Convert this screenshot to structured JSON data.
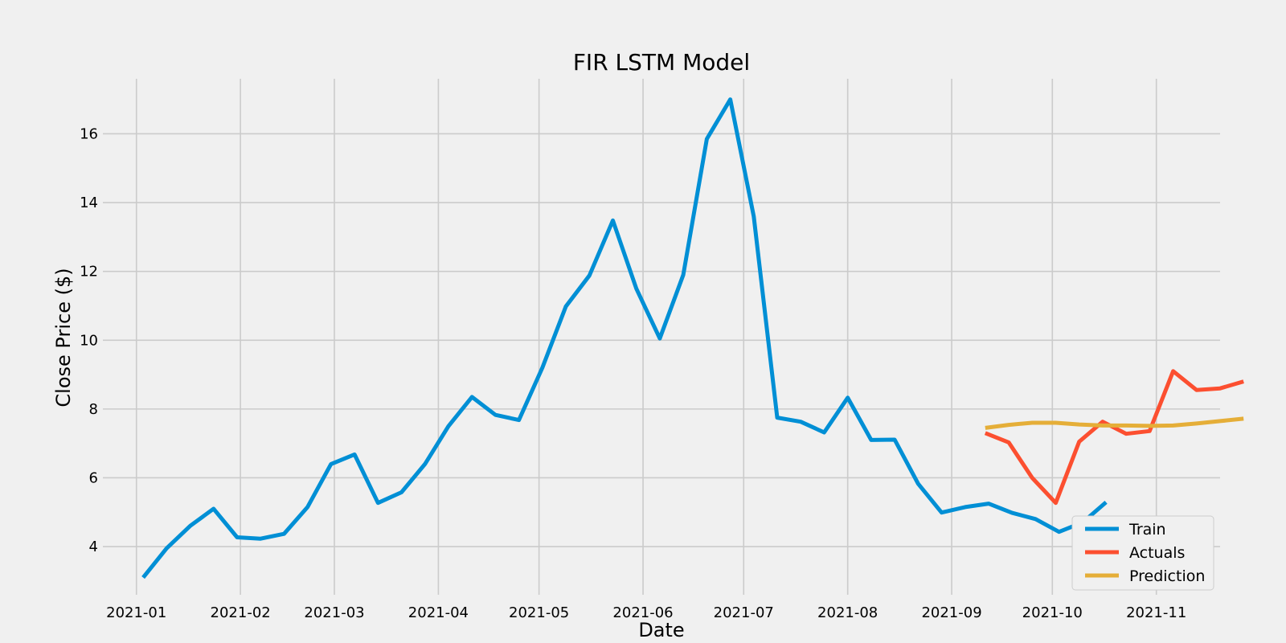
{
  "chart_data": {
    "type": "line",
    "title": "FIR LSTM Model",
    "xlabel": "Date",
    "ylabel": "Close Price ($)",
    "xlim": [
      "2020-12-22",
      "2021-11-20"
    ],
    "ylim": [
      2.6,
      17.6
    ],
    "xticks": [
      "2021-01",
      "2021-02",
      "2021-03",
      "2021-04",
      "2021-05",
      "2021-06",
      "2021-07",
      "2021-08",
      "2021-09",
      "2021-10",
      "2021-11"
    ],
    "yticks": [
      4,
      6,
      8,
      10,
      12,
      14,
      16
    ],
    "grid": true,
    "legend_position": "lower right",
    "colors": {
      "background": "#f0f0f0",
      "grid": "#cbcbcb"
    },
    "series": [
      {
        "name": "Train",
        "color": "#008fd5",
        "x": [
          "2021-01-03",
          "2021-01-10",
          "2021-01-17",
          "2021-01-24",
          "2021-01-31",
          "2021-02-07",
          "2021-02-14",
          "2021-02-21",
          "2021-02-28",
          "2021-03-07",
          "2021-03-14",
          "2021-03-21",
          "2021-03-28",
          "2021-04-04",
          "2021-04-11",
          "2021-04-18",
          "2021-04-25",
          "2021-05-02",
          "2021-05-09",
          "2021-05-16",
          "2021-05-23",
          "2021-05-30",
          "2021-06-06",
          "2021-06-13",
          "2021-06-20",
          "2021-06-27",
          "2021-07-04",
          "2021-07-11",
          "2021-07-18",
          "2021-07-25",
          "2021-08-01",
          "2021-08-08",
          "2021-08-15",
          "2021-08-22",
          "2021-08-29",
          "2021-09-05",
          "2021-09-12",
          "2021-09-19",
          "2021-09-26",
          "2021-10-03",
          "2021-10-10",
          "2021-10-17"
        ],
        "y": [
          3.1,
          3.95,
          4.6,
          5.1,
          4.27,
          4.23,
          4.37,
          5.15,
          6.4,
          6.68,
          5.27,
          5.58,
          6.4,
          7.5,
          8.35,
          7.83,
          7.68,
          9.2,
          10.98,
          11.88,
          13.48,
          11.5,
          10.05,
          11.9,
          15.85,
          17.0,
          13.6,
          7.75,
          7.63,
          7.32,
          8.33,
          7.1,
          7.11,
          5.83,
          4.99,
          5.15,
          5.25,
          4.98,
          4.8,
          4.43,
          4.7,
          5.29
        ]
      },
      {
        "name": "Actuals",
        "color": "#fc4f30",
        "x": [
          "2021-09-11",
          "2021-09-18",
          "2021-09-25",
          "2021-10-02",
          "2021-10-09",
          "2021-10-16",
          "2021-10-23",
          "2021-10-30",
          "2021-11-06",
          "2021-11-13",
          "2021-11-20",
          "2021-11-27"
        ],
        "y": [
          7.3,
          7.03,
          6.0,
          5.27,
          7.05,
          7.63,
          7.28,
          7.36,
          9.1,
          8.55,
          8.6,
          8.8
        ]
      },
      {
        "name": "Prediction",
        "color": "#e5ae38",
        "x": [
          "2021-09-11",
          "2021-09-18",
          "2021-09-25",
          "2021-10-02",
          "2021-10-09",
          "2021-10-16",
          "2021-10-23",
          "2021-10-30",
          "2021-11-06",
          "2021-11-13",
          "2021-11-20",
          "2021-11-27"
        ],
        "y": [
          7.45,
          7.54,
          7.6,
          7.6,
          7.55,
          7.52,
          7.52,
          7.51,
          7.52,
          7.58,
          7.65,
          7.72
        ]
      }
    ]
  }
}
